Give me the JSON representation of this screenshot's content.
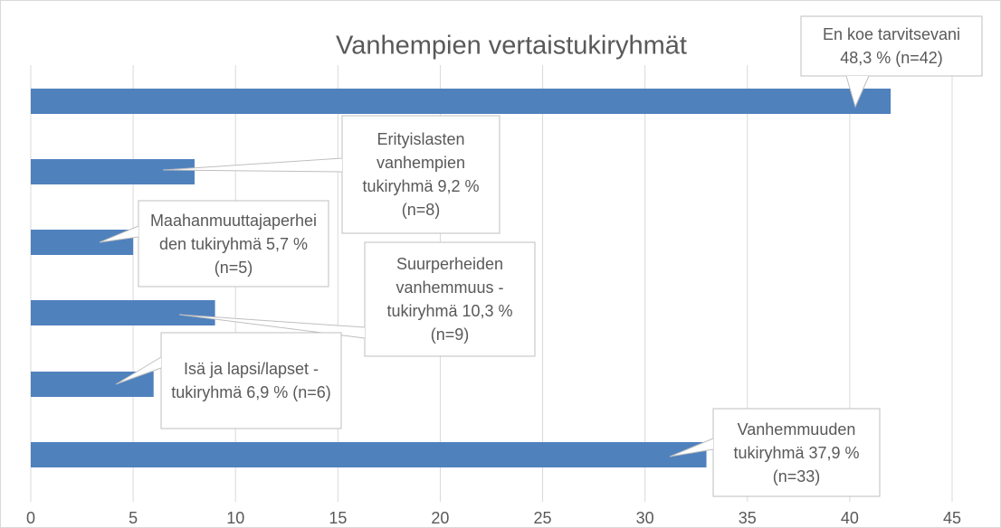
{
  "chart_data": {
    "type": "bar",
    "orientation": "horizontal",
    "title": "Vanhempien vertaistukiryhmät",
    "categories": [
      "En koe tarvitsevani",
      "Erityislasten vanhempien tukiryhmä",
      "Maahanmuuttajaperheiden tukiryhmä",
      "Suurperheiden vanhemmuus - tukiryhmä",
      "Isä ja lapsi/lapset - tukiryhmä",
      "Vanhemmuuden tukiryhmä"
    ],
    "values": [
      42,
      8,
      5,
      9,
      6,
      33
    ],
    "value_labels": [
      "48,3 % (n=42)",
      "9,2 % (n=8)",
      "5,7 % (n=5)",
      "10,3 % (n=9)",
      "6,9 % (n=6)",
      "37,9 % (n=33)"
    ],
    "color": "#4f81bd",
    "xlim": [
      0,
      45
    ],
    "xticks": [
      0,
      5,
      10,
      15,
      20,
      25,
      30,
      35,
      40,
      45
    ],
    "grid": true
  }
}
